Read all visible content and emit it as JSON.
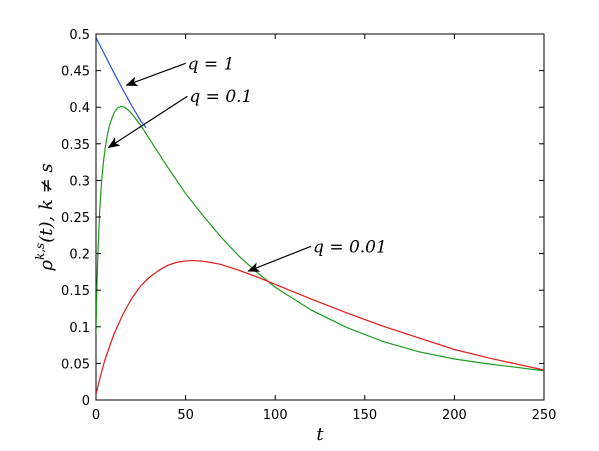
{
  "chart_data": {
    "type": "line",
    "title": "",
    "xlabel": "t",
    "ylabel": "ρ^{k,s}(t), k ≠ s",
    "ylabel_parts": {
      "rho": "ρ",
      "sup": "k,s",
      "rest": "(t), k ≠ s"
    },
    "xlim": [
      0,
      250
    ],
    "ylim": [
      0,
      0.5
    ],
    "xticks": [
      0,
      50,
      100,
      150,
      200,
      250
    ],
    "yticks": [
      0,
      0.05,
      0.1,
      0.15,
      0.2,
      0.25,
      0.3,
      0.35,
      0.4,
      0.45,
      0.5
    ],
    "grid": false,
    "legend": "none",
    "series": [
      {
        "color": "#2a4fe0",
        "x": [
          0,
          5,
          10,
          15,
          20,
          25,
          28
        ],
        "y": [
          0.495,
          0.471,
          0.447,
          0.424,
          0.402,
          0.381,
          0.372
        ]
      },
      {
        "color": "#1e9a1e",
        "x": [
          0,
          0.5,
          1,
          2,
          3,
          4,
          5,
          6,
          7,
          8,
          10,
          12,
          14,
          16,
          18,
          20,
          25,
          30,
          40,
          50,
          60,
          70,
          80,
          90,
          100,
          120,
          140,
          160,
          180,
          200,
          220,
          250
        ],
        "y": [
          0.09,
          0.155,
          0.195,
          0.255,
          0.295,
          0.322,
          0.342,
          0.358,
          0.37,
          0.379,
          0.392,
          0.399,
          0.401,
          0.4,
          0.396,
          0.391,
          0.375,
          0.356,
          0.318,
          0.282,
          0.251,
          0.222,
          0.196,
          0.174,
          0.154,
          0.123,
          0.099,
          0.08,
          0.066,
          0.056,
          0.049,
          0.04
        ]
      },
      {
        "color": "#e01a1a",
        "x": [
          0,
          2,
          5,
          10,
          15,
          20,
          25,
          30,
          35,
          40,
          45,
          50,
          55,
          60,
          65,
          70,
          80,
          90,
          100,
          110,
          120,
          140,
          160,
          180,
          200,
          220,
          250
        ],
        "y": [
          0.008,
          0.028,
          0.055,
          0.09,
          0.117,
          0.139,
          0.156,
          0.168,
          0.177,
          0.184,
          0.188,
          0.19,
          0.1905,
          0.1895,
          0.1875,
          0.185,
          0.177,
          0.168,
          0.158,
          0.148,
          0.138,
          0.119,
          0.101,
          0.085,
          0.069,
          0.057,
          0.041
        ]
      }
    ],
    "annotations": [
      {
        "text": "q = 1",
        "tail": [
          50,
          0.46
        ],
        "head": [
          17,
          0.43
        ]
      },
      {
        "text": "q = 0.1",
        "tail": [
          51,
          0.415
        ],
        "head": [
          7,
          0.345
        ]
      },
      {
        "text": "q = 0.01",
        "tail": [
          120,
          0.21
        ],
        "head": [
          85,
          0.176
        ]
      }
    ]
  }
}
